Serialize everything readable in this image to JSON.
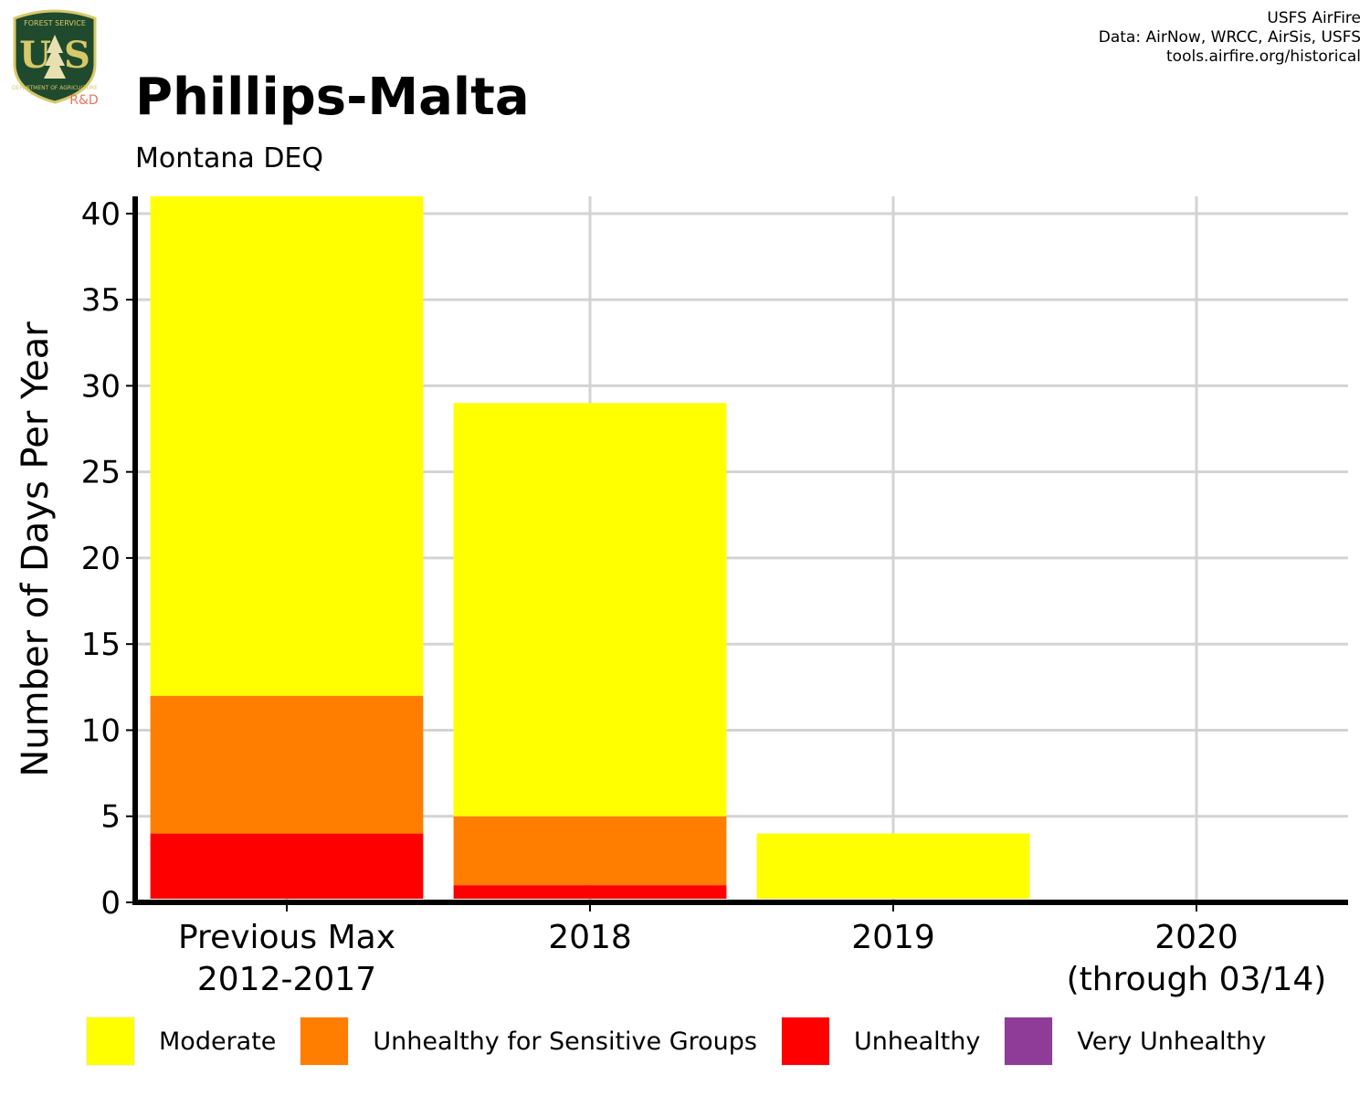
{
  "header": {
    "title": "Phillips-Malta",
    "subtitle": "Montana DEQ",
    "credits": [
      "USFS AirFire",
      "Data: AirNow, WRCC, AirSis, USFS",
      "tools.airfire.org/historical"
    ]
  },
  "logo": {
    "top_text": "FOREST SERVICE",
    "letters": "U S",
    "bottom_text": "DEPARTMENT OF AGRICULTURE",
    "tag": "R&D"
  },
  "chart_data": {
    "type": "bar",
    "stacked": true,
    "title": "Phillips-Malta",
    "subtitle": "Montana DEQ",
    "xlabel": "",
    "ylabel": "Number of Days Per Year",
    "ylim": [
      0,
      41
    ],
    "yticks": [
      0,
      5,
      10,
      15,
      20,
      25,
      30,
      35,
      40
    ],
    "grid": true,
    "legend_position": "bottom",
    "categories": [
      [
        "Previous Max",
        "2012-2017"
      ],
      [
        "2018"
      ],
      [
        "2019"
      ],
      [
        "2020",
        "(through 03/14)"
      ]
    ],
    "series": [
      {
        "name": "Very Unhealthy",
        "color": "#8E3C97",
        "values": [
          0,
          0,
          0,
          0
        ]
      },
      {
        "name": "Unhealthy",
        "color": "#FF0000",
        "values": [
          4,
          1,
          0,
          0
        ]
      },
      {
        "name": "Unhealthy for Sensitive Groups",
        "color": "#FF7E00",
        "values": [
          8,
          4,
          0,
          0
        ]
      },
      {
        "name": "Moderate",
        "color": "#FFFF00",
        "values": [
          29,
          24,
          4,
          0
        ]
      }
    ]
  },
  "legend": {
    "items": [
      {
        "label": "Moderate",
        "color": "#FFFF00"
      },
      {
        "label": "Unhealthy for Sensitive Groups",
        "color": "#FF7E00"
      },
      {
        "label": "Unhealthy",
        "color": "#FF0000"
      },
      {
        "label": "Very Unhealthy",
        "color": "#8E3C97"
      }
    ]
  }
}
